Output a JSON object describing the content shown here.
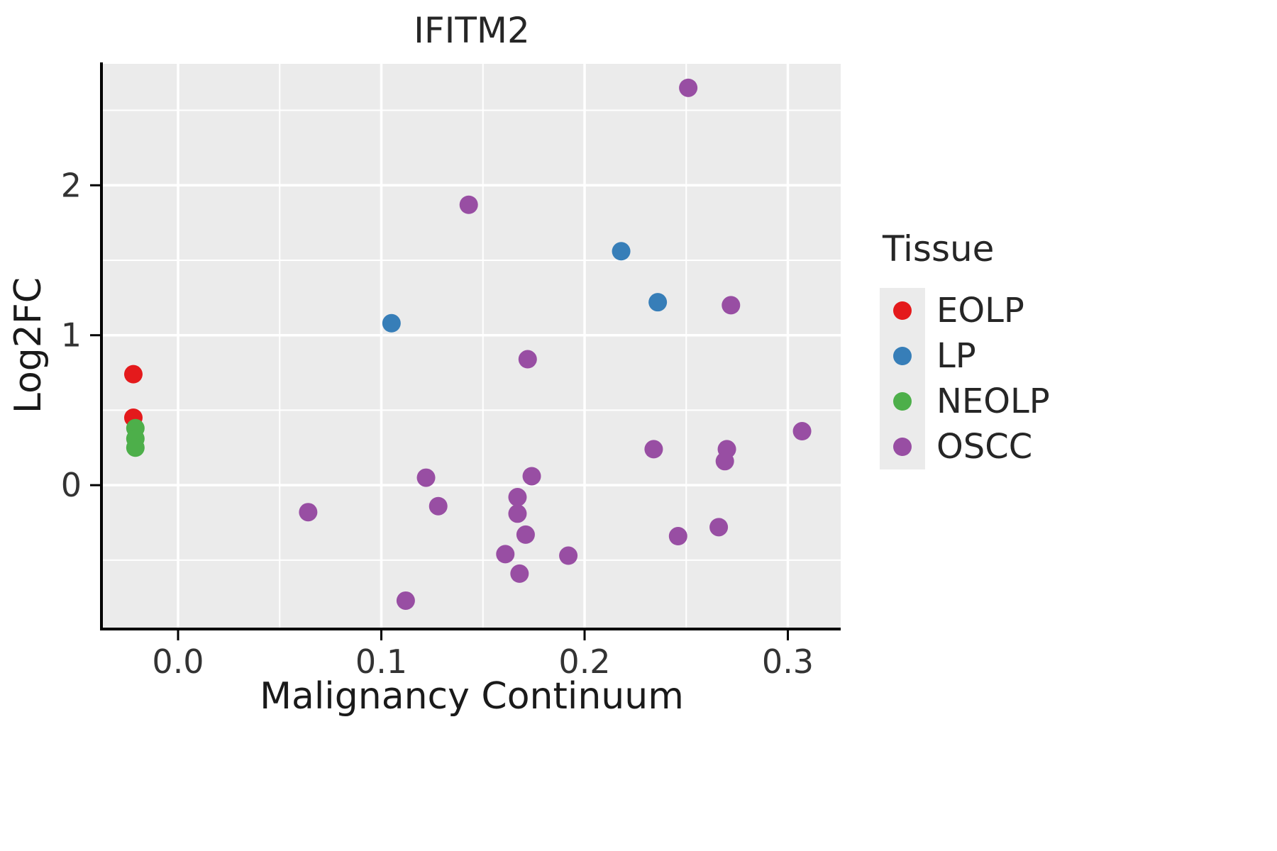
{
  "chart_data": {
    "type": "scatter",
    "title": "IFITM2",
    "xlabel": "Malignancy Continuum",
    "ylabel": "Log2FC",
    "xlim": [
      -0.037,
      0.326
    ],
    "ylim": [
      -0.95,
      2.81
    ],
    "x_ticks": [
      0.0,
      0.1,
      0.2,
      0.3
    ],
    "x_tick_labels": [
      "0.0",
      "0.1",
      "0.2",
      "0.3"
    ],
    "y_ticks": [
      0,
      1,
      2
    ],
    "y_tick_labels": [
      "0",
      "1",
      "2"
    ],
    "x_minor_ticks": [
      0.05,
      0.15,
      0.25
    ],
    "y_minor_ticks": [
      -0.5,
      0.5,
      1.5,
      2.5
    ],
    "grid": true,
    "legend": {
      "title": "Tissue",
      "position": "right"
    },
    "colors": {
      "panel_bg": "#EBEBEB",
      "grid": "#FFFFFF",
      "axis": "#000000",
      "tick_text": "#333333"
    },
    "series": [
      {
        "name": "EOLP",
        "color": "#E41A1C",
        "points": [
          [
            -0.022,
            0.74
          ],
          [
            -0.022,
            0.45
          ]
        ]
      },
      {
        "name": "LP",
        "color": "#377EB8",
        "points": [
          [
            0.105,
            1.08
          ],
          [
            0.218,
            1.56
          ],
          [
            0.236,
            1.22
          ]
        ]
      },
      {
        "name": "NEOLP",
        "color": "#4DAF4A",
        "points": [
          [
            -0.021,
            0.38
          ],
          [
            -0.021,
            0.31
          ],
          [
            -0.021,
            0.25
          ]
        ]
      },
      {
        "name": "OSCC",
        "color": "#984EA3",
        "points": [
          [
            0.251,
            2.65
          ],
          [
            0.143,
            1.87
          ],
          [
            0.272,
            1.2
          ],
          [
            0.172,
            0.84
          ],
          [
            0.307,
            0.36
          ],
          [
            0.234,
            0.24
          ],
          [
            0.27,
            0.24
          ],
          [
            0.269,
            0.16
          ],
          [
            0.122,
            0.05
          ],
          [
            0.174,
            0.06
          ],
          [
            0.167,
            -0.08
          ],
          [
            0.128,
            -0.14
          ],
          [
            0.167,
            -0.19
          ],
          [
            0.064,
            -0.18
          ],
          [
            0.171,
            -0.33
          ],
          [
            0.246,
            -0.34
          ],
          [
            0.266,
            -0.28
          ],
          [
            0.161,
            -0.46
          ],
          [
            0.192,
            -0.47
          ],
          [
            0.168,
            -0.59
          ],
          [
            0.112,
            -0.77
          ]
        ]
      }
    ]
  }
}
